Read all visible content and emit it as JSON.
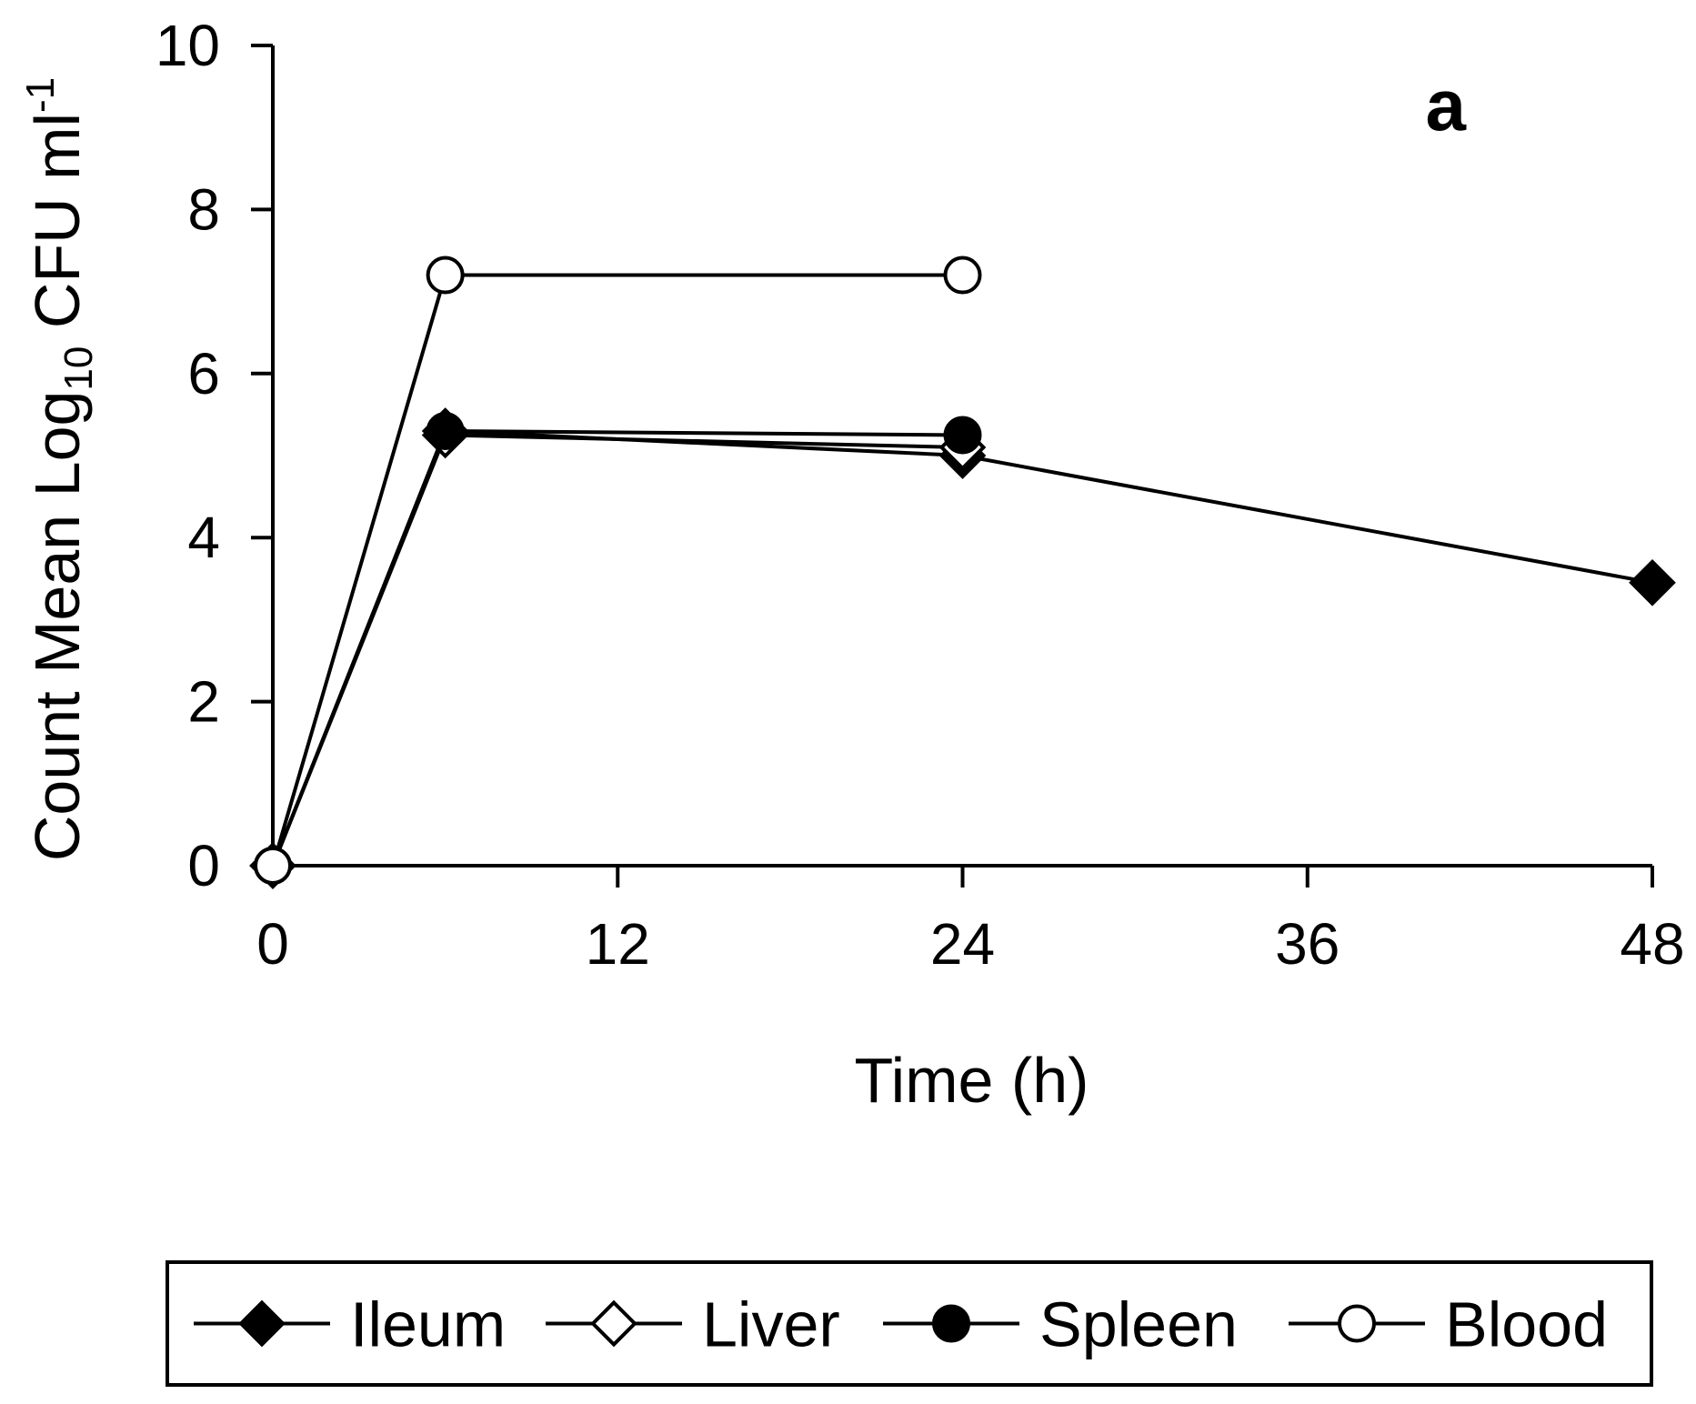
{
  "chart_data": {
    "type": "line",
    "panel_label": "a",
    "xlabel": "Time (h)",
    "ylabel": {
      "prefix": "Count Mean Log",
      "sub": "10",
      "mid": " CFU ml",
      "sup": "-1"
    },
    "xlim": [
      0,
      48
    ],
    "ylim": [
      0,
      10
    ],
    "xticks": [
      0,
      12,
      24,
      36,
      48
    ],
    "yticks": [
      0,
      2,
      4,
      6,
      8,
      10
    ],
    "grid": false,
    "legend_position": "bottom",
    "series": [
      {
        "name": "Ileum",
        "marker": "filled-diamond",
        "x": [
          0,
          6,
          24,
          48
        ],
        "y": [
          0,
          5.3,
          5.0,
          3.45
        ]
      },
      {
        "name": "Liver",
        "marker": "open-diamond",
        "x": [
          0,
          6,
          24
        ],
        "y": [
          0,
          5.25,
          5.1
        ]
      },
      {
        "name": "Spleen",
        "marker": "filled-circle",
        "x": [
          0,
          6,
          24
        ],
        "y": [
          0,
          5.3,
          5.25
        ]
      },
      {
        "name": "Blood",
        "marker": "open-circle",
        "x": [
          0,
          6,
          24
        ],
        "y": [
          0,
          7.2,
          7.2
        ]
      }
    ]
  }
}
